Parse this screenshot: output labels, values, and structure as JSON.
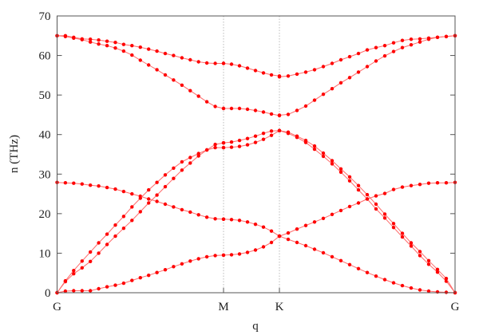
{
  "chart_data": {
    "type": "line",
    "title": "",
    "xlabel": "q",
    "ylabel": "n (THz)",
    "ylim": [
      0,
      70
    ],
    "yticks": [
      0,
      10,
      20,
      30,
      40,
      50,
      60,
      70
    ],
    "xtick_labels": [
      "G",
      "M",
      "K",
      "G"
    ],
    "segments": [
      "G-M",
      "M-K",
      "K-G"
    ],
    "grid": "dotted vertical lines at M and K",
    "legend": "none",
    "colors": {
      "points": "#ff0000",
      "lines": "#ff6a6a",
      "axis": "#555555",
      "vline": "#aaaaaa"
    },
    "series": [
      {
        "values": {
          "G-M": [
            0,
            0.4,
            0.5,
            0.5,
            0.5,
            1.0,
            1.5,
            1.9,
            2.4,
            3.1,
            3.8,
            4.4,
            5.1,
            5.8,
            6.6,
            7.3,
            8.0,
            8.6,
            9.1,
            9.4,
            9.5
          ],
          "M-K": [
            9.5,
            9.6,
            9.8,
            10.2,
            10.8,
            11.6,
            12.7,
            14.3
          ],
          "K-G": [
            14.3,
            15.1,
            16.1,
            17.0,
            17.9,
            18.8,
            19.8,
            20.8,
            21.8,
            22.7,
            23.7,
            24.5,
            25.1,
            26.1,
            26.7,
            27.1,
            27.4,
            27.7,
            27.8,
            27.8,
            27.9
          ]
        }
      },
      {
        "values": {
          "G-M": [
            27.9,
            27.8,
            27.7,
            27.5,
            27.2,
            27.0,
            26.6,
            26.2,
            25.6,
            25.0,
            24.4,
            23.7,
            23.1,
            22.4,
            21.7,
            21.0,
            20.4,
            19.7,
            19.1,
            18.7,
            18.6
          ],
          "M-K": [
            18.6,
            18.5,
            18.3,
            17.9,
            17.3,
            16.6,
            15.6,
            14.3
          ],
          "K-G": [
            14.3,
            13.5,
            12.7,
            11.9,
            11.0,
            10.1,
            9.1,
            8.1,
            7.1,
            6.1,
            5.1,
            4.2,
            3.3,
            2.5,
            1.8,
            1.2,
            0.7,
            0.4,
            0.2,
            0.1,
            0
          ]
        }
      },
      {
        "values": {
          "G-M": [
            0,
            2.8,
            4.8,
            6.3,
            7.9,
            10.0,
            12.2,
            14.3,
            16.3,
            18.3,
            20.5,
            22.7,
            24.7,
            26.8,
            28.9,
            31.0,
            32.8,
            34.6,
            36.1,
            36.7,
            36.7
          ],
          "M-K": [
            36.7,
            36.8,
            37.0,
            37.4,
            38.0,
            38.8,
            39.8,
            41.0
          ],
          "K-G": [
            41.0,
            40.3,
            39.3,
            38.0,
            36.3,
            34.5,
            32.6,
            30.5,
            28.3,
            26.0,
            23.7,
            21.2,
            18.9,
            16.5,
            14.1,
            11.8,
            9.4,
            7.2,
            5.2,
            2.9,
            0
          ]
        }
      },
      {
        "values": {
          "G-M": [
            0,
            3.0,
            5.6,
            8.0,
            10.3,
            12.6,
            14.8,
            17.1,
            19.3,
            21.7,
            23.9,
            26.0,
            27.9,
            29.8,
            31.5,
            33.1,
            34.2,
            35.2,
            36.1,
            37.5,
            37.9
          ],
          "M-K": [
            37.9,
            38.1,
            38.5,
            39.0,
            39.6,
            40.3,
            40.9,
            41.0
          ],
          "K-G": [
            41.0,
            40.6,
            39.6,
            38.5,
            37.1,
            35.3,
            33.4,
            31.3,
            29.3,
            27.1,
            24.8,
            22.4,
            19.9,
            17.5,
            15.0,
            12.6,
            10.4,
            8.1,
            5.9,
            3.6,
            0
          ]
        }
      },
      {
        "values": {
          "G-M": [
            65.0,
            64.8,
            64.4,
            64.0,
            63.4,
            62.9,
            62.5,
            61.9,
            61.1,
            60.1,
            58.8,
            57.6,
            56.4,
            55.1,
            53.8,
            52.5,
            51.1,
            49.7,
            48.3,
            47.1,
            46.6
          ],
          "M-K": [
            46.6,
            46.6,
            46.6,
            46.4,
            46.1,
            45.7,
            45.2,
            44.8
          ],
          "K-G": [
            44.9,
            45.1,
            46.1,
            47.2,
            48.7,
            50.2,
            51.6,
            53.1,
            54.4,
            55.8,
            57.2,
            58.6,
            59.9,
            61.0,
            62.0,
            62.7,
            63.4,
            64.1,
            64.6,
            64.8,
            65.0
          ]
        }
      },
      {
        "values": {
          "G-M": [
            65.0,
            65.0,
            64.6,
            64.2,
            64.1,
            63.9,
            63.6,
            63.3,
            62.8,
            62.5,
            62.1,
            61.6,
            61.1,
            60.5,
            60.0,
            59.4,
            58.9,
            58.4,
            58.1,
            58.0,
            58.0
          ],
          "M-K": [
            58.0,
            57.8,
            57.4,
            56.8,
            56.2,
            55.6,
            55.1,
            54.8
          ],
          "K-G": [
            54.6,
            54.8,
            55.3,
            55.8,
            56.4,
            57.2,
            58.0,
            58.9,
            59.7,
            60.5,
            61.4,
            62.0,
            62.5,
            63.2,
            63.8,
            64.1,
            64.2,
            64.4,
            64.6,
            64.8,
            65.0
          ]
        }
      }
    ]
  }
}
